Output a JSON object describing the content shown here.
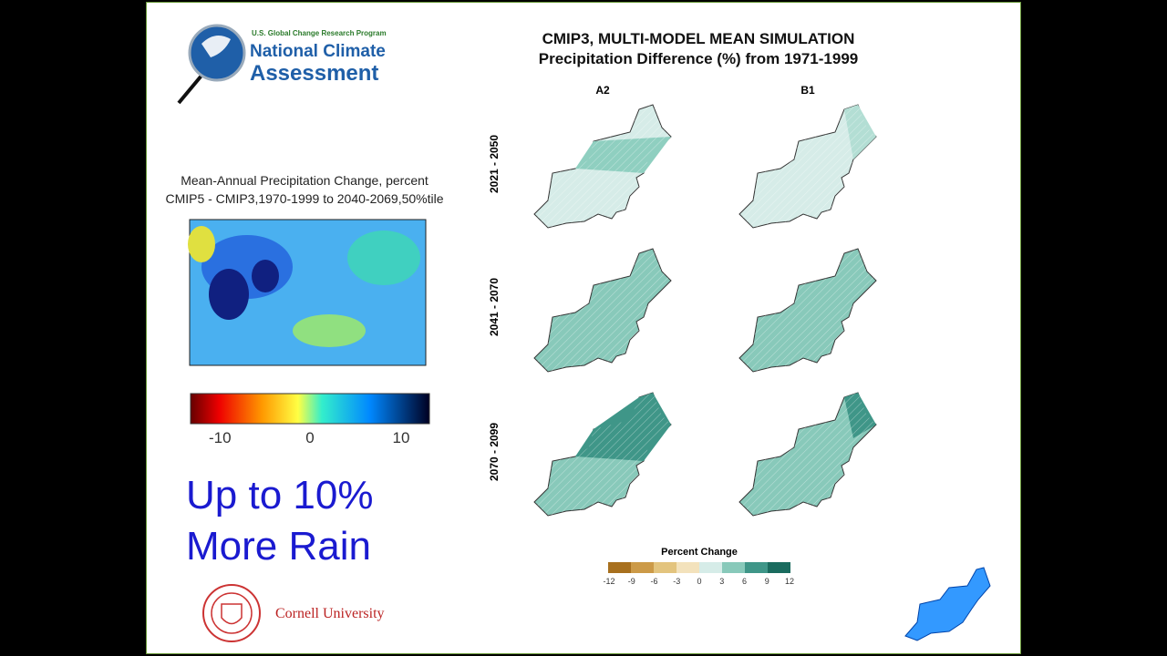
{
  "logo": {
    "program": "U.S. Global Change Research Program",
    "line1": "National Climate",
    "line2": "Assessment"
  },
  "left_map": {
    "title_line1": "Mean-Annual Precipitation Change, percent",
    "title_line2": "CMIP5 - CMIP3,1970-1999 to 2040-2069,50%tile",
    "colorbar_ticks": [
      -10,
      0,
      10
    ]
  },
  "headline": [
    "Up to 10%",
    "More Rain"
  ],
  "footer": {
    "institution": "Cornell University"
  },
  "right_panel": {
    "title": "CMIP3, MULTI-MODEL MEAN SIMULATION",
    "subtitle": "Precipitation Difference (%) from 1971-1999",
    "columns": [
      "A2",
      "B1"
    ],
    "rows": [
      "2021 - 2050",
      "2041 - 2070",
      "2070 - 2099"
    ],
    "legend": {
      "title": "Percent Change",
      "ticks": [
        -12,
        -9,
        -6,
        -3,
        0,
        3,
        6,
        9,
        12
      ]
    }
  }
}
